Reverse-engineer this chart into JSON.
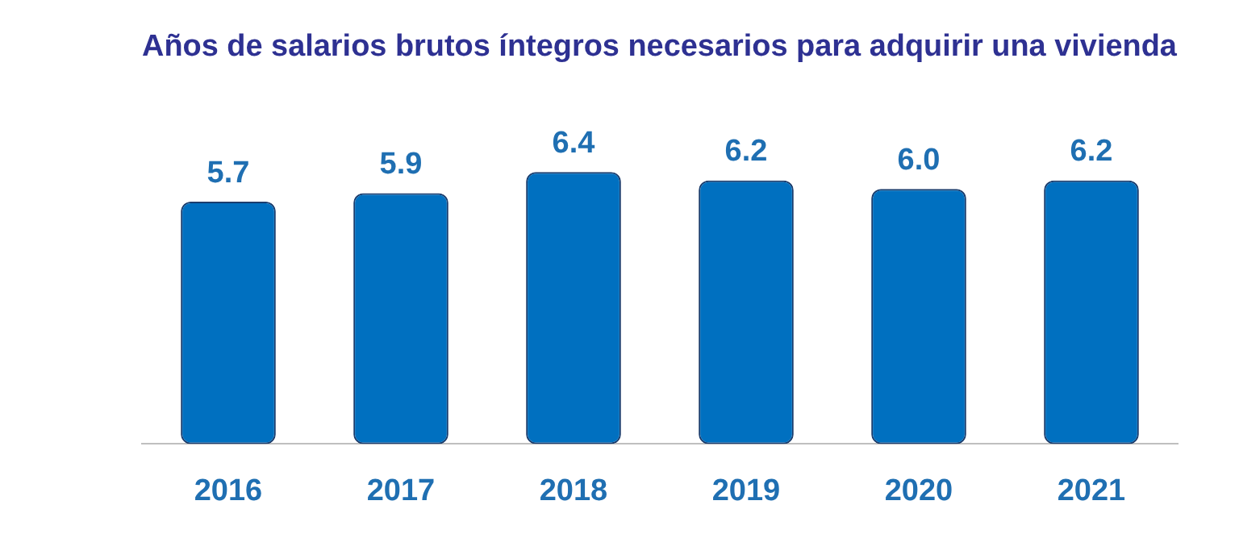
{
  "chart_data": {
    "type": "bar",
    "title": "Años de salarios brutos íntegros necesarios para adquirir una vivienda",
    "categories": [
      "2016",
      "2017",
      "2018",
      "2019",
      "2020",
      "2021"
    ],
    "values": [
      5.7,
      5.9,
      6.4,
      6.2,
      6.0,
      6.2
    ],
    "value_labels": [
      "5.7",
      "5.9",
      "6.4",
      "6.2",
      "6.0",
      "6.2"
    ],
    "color": "#0070c0"
  }
}
